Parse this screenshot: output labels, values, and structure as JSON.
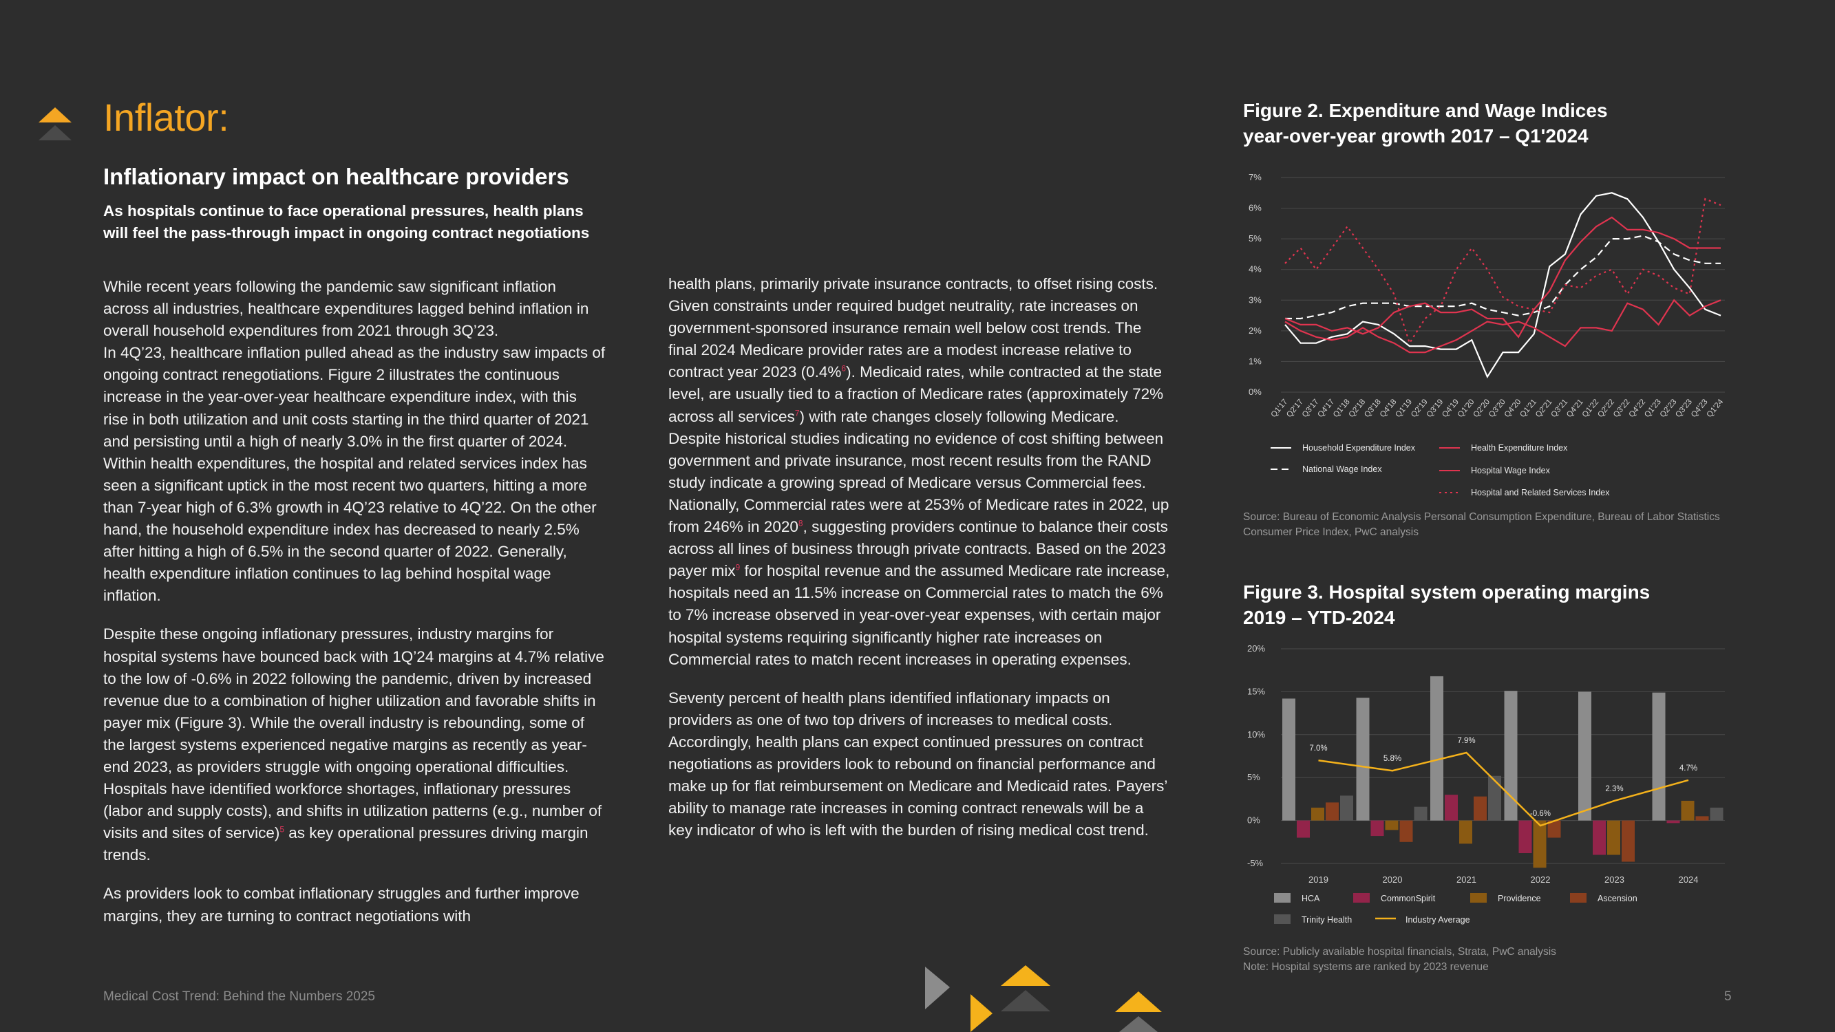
{
  "page": {
    "title": "Inflator:",
    "subtitle": "Inflationary impact on healthcare providers",
    "lead": "As hospitals continue to face operational pressures, health plans will feel the pass-through impact in ongoing contract negotiations",
    "footer_left": "Medical Cost Trend: Behind the Numbers 2025",
    "page_number": "5"
  },
  "colors": {
    "accent": "#f5a623",
    "background": "#2d2d2d",
    "footnote": "#d9365a"
  },
  "body": {
    "p1": [
      "While recent years following the pandemic saw significant inflation across all industries, healthcare expenditures lagged behind inflation in overall household expenditures from 2021 through 3Q’23.",
      "In 4Q’23, healthcare inflation pulled ahead as the industry saw impacts of ongoing contract renegotiations. Figure 2 illustrates the continuous increase in the year-over-year healthcare expenditure index, with this rise in both utilization and unit costs starting in the third quarter of 2021 and persisting until a high of nearly 3.0% in the first quarter of 2024. Within health expenditures, the hospital and related services index has seen a significant uptick in the most recent two quarters, hitting a more than 7-year high of 6.3% growth in 4Q’23 relative to 4Q’22. On the other hand, the household expenditure index has decreased to nearly 2.5% after hitting a high of 6.5% in the second quarter of 2022. Generally, health expenditure inflation continues to lag behind hospital wage inflation."
    ],
    "p2_before": "Despite these ongoing inflationary pressures, industry margins for hospital systems have bounced back with 1Q’24 margins at 4.7% relative to the low of -0.6% in 2022 following the pandemic, driven by increased revenue due to a combination of higher utilization and favorable shifts in payer mix (Figure 3). While the overall industry is rebounding, some of the largest systems experienced negative margins as recently as year-end 2023, as providers struggle with ongoing operational difficulties. Hospitals have identified workforce shortages, inflationary pressures (labor and supply costs), and shifts in utilization patterns (e.g., number of visits and sites of service)",
    "p2_fn": "5",
    "p2_after": " as key operational pressures driving margin trends.",
    "p3": "As providers look to combat inflationary struggles and further improve margins, they are turning to contract negotiations with",
    "c2p1_a": "health plans, primarily private insurance contracts, to offset rising costs.  Given constraints under required budget neutrality, rate increases on government-sponsored insurance remain well below cost trends. The final 2024 Medicare provider rates are a modest increase relative to contract year 2023 (0.4%",
    "c2p1_fn1": "6",
    "c2p1_b": "). Medicaid rates, while contracted at the state level, are usually tied to a fraction of Medicare rates (approximately 72% across all services",
    "c2p1_fn2": "7",
    "c2p1_c": ") with rate changes closely following Medicare. Despite historical studies indicating no evidence of cost shifting between government and private insurance, most recent results from the RAND study indicate a growing spread of Medicare versus Commercial fees. Nationally, Commercial rates were at 253% of Medicare rates in 2022, up from 246% in 2020",
    "c2p1_fn3": "8",
    "c2p1_d": ", suggesting providers continue to balance their costs across all lines of business through private contracts. Based on the 2023 payer mix",
    "c2p1_fn4": "9",
    "c2p1_e": " for hospital revenue and the assumed Medicare rate increase, hospitals need an 11.5% increase on Commercial rates to match the 6% to 7% increase observed in year-over-year expenses, with certain major hospital systems requiring significantly higher rate increases on Commercial rates to match recent increases in operating expenses.",
    "c2p2": "Seventy percent of health plans identified inflationary impacts on providers as one of two top drivers of increases to medical costs. Accordingly, health plans can expect continued pressures on contract negotiations as providers look to rebound on financial performance and make up for flat reimbursement on Medicare and Medicaid rates. Payers’ ability to manage rate increases in coming contract renewals will be a key indicator of who is left with the burden of rising medical cost trend."
  },
  "figure2": {
    "title_line1": "Figure 2. Expenditure and Wage Indices",
    "title_line2": "year-over-year growth 2017 – Q1'2024",
    "source": "Source: Bureau of Economic Analysis Personal Consumption Expenditure, Bureau of Labor Statistics Consumer Price Index, PwC analysis"
  },
  "figure3": {
    "title_line1": "Figure 3. Hospital system operating margins",
    "title_line2": "2019 – YTD-2024",
    "source": "Source: Publicly available hospital financials, Strata, PwC analysis",
    "note": "Note: Hospital systems are ranked by 2023 revenue"
  },
  "chart_data": [
    {
      "type": "line",
      "ylim": [
        0,
        7
      ],
      "y_ticks": [
        "0%",
        "1%",
        "2%",
        "3%",
        "4%",
        "5%",
        "6%",
        "7%"
      ],
      "x": [
        "Q1'17",
        "Q2'17",
        "Q3'17",
        "Q4'17",
        "Q1'18",
        "Q2'18",
        "Q3'18",
        "Q4'18",
        "Q1'19",
        "Q2'19",
        "Q3'19",
        "Q4'19",
        "Q1'20",
        "Q2'20",
        "Q3'20",
        "Q4'20",
        "Q1'21",
        "Q2'21",
        "Q3'21",
        "Q4'21",
        "Q1'22",
        "Q2'22",
        "Q3'22",
        "Q4'22",
        "Q1'23",
        "Q2'23",
        "Q3'23",
        "Q4'23",
        "Q1'24"
      ],
      "series": [
        {
          "name": "Household Expenditure Index",
          "color": "#ffffff",
          "dash": "solid",
          "values": [
            2.2,
            1.6,
            1.6,
            1.8,
            1.9,
            2.3,
            2.2,
            1.9,
            1.5,
            1.5,
            1.4,
            1.4,
            1.7,
            0.5,
            1.3,
            1.3,
            1.9,
            4.1,
            4.5,
            5.8,
            6.4,
            6.5,
            6.3,
            5.7,
            4.9,
            4.0,
            3.4,
            2.7,
            2.5
          ]
        },
        {
          "name": "National Wage Index",
          "color": "#ffffff",
          "dash": "dashed",
          "values": [
            2.4,
            2.4,
            2.5,
            2.6,
            2.8,
            2.9,
            2.9,
            2.9,
            2.8,
            2.8,
            2.8,
            2.8,
            2.9,
            2.7,
            2.6,
            2.5,
            2.6,
            2.8,
            3.5,
            4.0,
            4.4,
            5.0,
            5.0,
            5.1,
            4.9,
            4.5,
            4.3,
            4.2,
            4.2
          ]
        },
        {
          "name": "Health Expenditure Index",
          "color": "#e0344f",
          "dash": "solid",
          "values": [
            2.3,
            2.0,
            1.8,
            1.7,
            1.8,
            2.1,
            1.8,
            1.6,
            1.3,
            1.3,
            1.5,
            1.7,
            2.0,
            2.3,
            2.2,
            2.3,
            2.1,
            1.8,
            1.5,
            2.1,
            2.1,
            2.0,
            2.9,
            2.7,
            2.2,
            3.0,
            2.5,
            2.8,
            3.0
          ]
        },
        {
          "name": "Hospital Wage Index",
          "color": "#e0344f",
          "dash": "solid",
          "values": [
            2.4,
            2.2,
            2.2,
            2.0,
            2.1,
            1.9,
            2.1,
            2.6,
            2.8,
            2.9,
            2.6,
            2.6,
            2.7,
            2.4,
            2.4,
            1.8,
            2.7,
            3.3,
            4.3,
            4.9,
            5.4,
            5.7,
            5.3,
            5.3,
            5.2,
            5.0,
            4.7,
            4.7,
            4.7
          ]
        },
        {
          "name": "Hospital and Related Services Index",
          "color": "#e0344f",
          "dash": "dotted",
          "values": [
            4.2,
            4.7,
            4.0,
            4.7,
            5.4,
            4.7,
            4.0,
            3.2,
            1.6,
            2.4,
            2.8,
            4.0,
            4.7,
            4.0,
            3.1,
            2.8,
            2.7,
            2.6,
            3.5,
            3.4,
            3.8,
            4.0,
            3.2,
            4.0,
            3.8,
            3.4,
            3.2,
            6.3,
            6.1
          ]
        }
      ]
    },
    {
      "type": "bar",
      "ylim": [
        -5,
        20
      ],
      "y_ticks": [
        "-5%",
        "0%",
        "5%",
        "10%",
        "15%",
        "20%"
      ],
      "categories": [
        "2019",
        "2020",
        "2021",
        "2022",
        "2023",
        "2024"
      ],
      "series": [
        {
          "name": "HCA",
          "color": "#8c8c8c",
          "values": [
            14.2,
            14.3,
            16.8,
            15.1,
            15.0,
            14.9
          ]
        },
        {
          "name": "CommonSpirit",
          "color": "#93244a",
          "values": [
            -2.0,
            -1.8,
            3.0,
            -3.8,
            -4.0,
            -0.3
          ]
        },
        {
          "name": "Providence",
          "color": "#8a5a12",
          "values": [
            1.5,
            -1.1,
            -2.7,
            -5.5,
            -4.0,
            2.3
          ]
        },
        {
          "name": "Ascension",
          "color": "#8a3f1e",
          "values": [
            2.1,
            -2.5,
            2.8,
            -2.0,
            -4.8,
            0.5
          ]
        },
        {
          "name": "Trinity Health",
          "color": "#555555",
          "values": [
            2.9,
            1.6,
            5.2,
            0.0,
            0.0,
            1.5
          ]
        }
      ],
      "line": {
        "name": "Industry Average",
        "color": "#f5b21b",
        "values": [
          7.0,
          5.8,
          7.9,
          -0.6,
          2.3,
          4.7
        ],
        "labels": [
          "7.0%",
          "5.8%",
          "7.9%",
          "-0.6%",
          "2.3%",
          "4.7%"
        ]
      }
    }
  ]
}
